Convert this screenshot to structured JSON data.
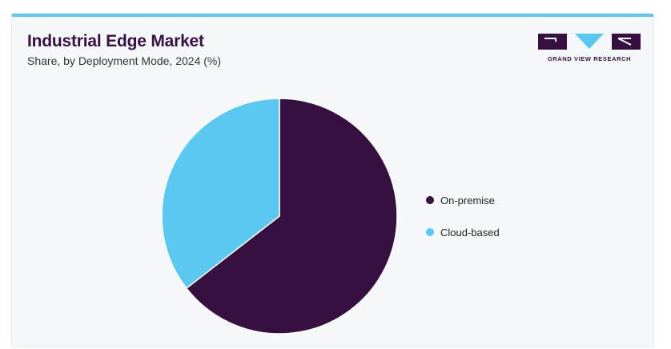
{
  "header": {
    "title": "Industrial Edge Market",
    "subtitle": "Share, by Deployment Mode, 2024 (%)"
  },
  "logo": {
    "text": "GRAND VIEW RESEARCH",
    "brand_color": "#361040",
    "accent_color": "#5bc8f2"
  },
  "chart_data": {
    "type": "pie",
    "categories": [
      "On-premise",
      "Cloud-based"
    ],
    "values": [
      64.5,
      35.5
    ],
    "colors": [
      "#361040",
      "#5bc8f2"
    ],
    "legend_position": "right"
  }
}
